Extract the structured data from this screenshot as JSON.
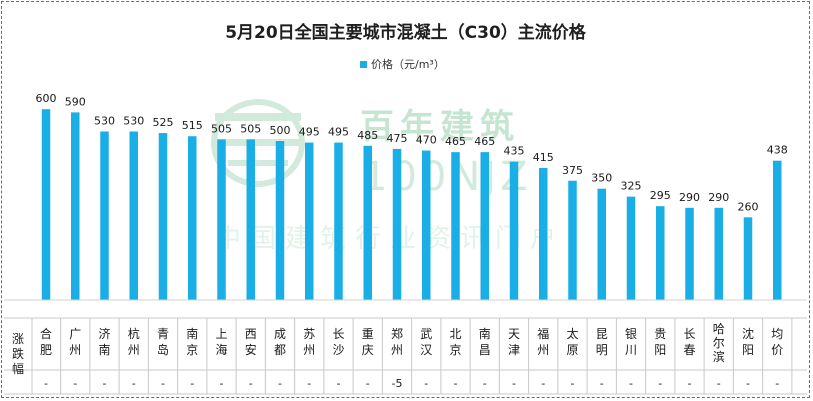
{
  "chart_data": {
    "type": "bar",
    "title": "5月20日全国主要城市混凝土（C30）主流价格",
    "series": [
      {
        "name": "价格（元/m³）",
        "color": "#1aaee6",
        "values": [
          600,
          590,
          530,
          530,
          525,
          515,
          505,
          505,
          500,
          495,
          495,
          485,
          475,
          470,
          465,
          465,
          435,
          415,
          375,
          350,
          325,
          295,
          290,
          290,
          260,
          438
        ]
      }
    ],
    "categories": [
      "合肥",
      "广州",
      "济南",
      "杭州",
      "青岛",
      "南京",
      "上海",
      "西安",
      "成都",
      "苏州",
      "长沙",
      "重庆",
      "郑州",
      "武汉",
      "北京",
      "南昌",
      "天津",
      "福州",
      "太原",
      "昆明",
      "银川",
      "贵阳",
      "长春",
      "哈尔滨",
      "沈阳",
      "均价"
    ],
    "table": {
      "row_label": "涨跌幅",
      "values": [
        "-",
        "-",
        "-",
        "-",
        "-",
        "-",
        "-",
        "-",
        "-",
        "-",
        "-",
        "-",
        "-5",
        "-",
        "-",
        "-",
        "-",
        "-",
        "-",
        "-",
        "-",
        "-",
        "-",
        "-",
        "-",
        "-"
      ],
      "highlight_color": "#33a84a"
    },
    "legend_position": "top-center",
    "grid": false,
    "data_labels": true
  },
  "watermark": {
    "brand": "百年建筑",
    "site": "100NJZ",
    "tagline": "中国建筑行业资讯门户",
    "color": "#7fc69b"
  }
}
